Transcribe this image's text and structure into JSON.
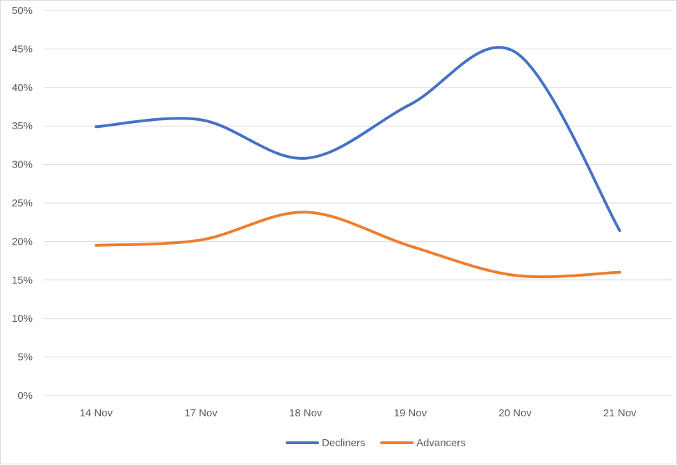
{
  "chart_data": {
    "type": "line",
    "title": "",
    "xlabel": "",
    "ylabel": "",
    "categories": [
      "14 Nov",
      "17 Nov",
      "18 Nov",
      "19 Nov",
      "20 Nov",
      "21 Nov"
    ],
    "ylim": [
      0,
      50
    ],
    "y_ticks": [
      0,
      5,
      10,
      15,
      20,
      25,
      30,
      35,
      40,
      45,
      50
    ],
    "y_tick_labels": [
      "0%",
      "5%",
      "10%",
      "15%",
      "20%",
      "25%",
      "30%",
      "35%",
      "40%",
      "45%",
      "50%"
    ],
    "grid": true,
    "smooth": true,
    "legend_position": "bottom",
    "series": [
      {
        "name": "Decliners",
        "color": "#4472C4",
        "values": [
          34.9,
          35.8,
          30.8,
          37.8,
          44.6,
          21.4
        ]
      },
      {
        "name": "Advancers",
        "color": "#ED7D31",
        "values": [
          19.5,
          20.2,
          23.8,
          19.4,
          15.6,
          16.0
        ]
      }
    ]
  }
}
